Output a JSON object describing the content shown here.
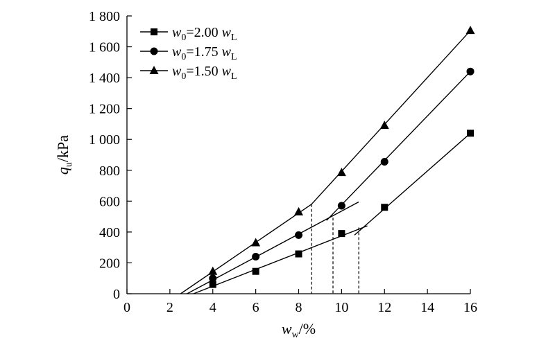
{
  "chart_data": {
    "type": "line",
    "xlim": [
      0,
      16
    ],
    "ylim": [
      0,
      1800
    ],
    "xticks": [
      0,
      2,
      4,
      6,
      8,
      10,
      12,
      14,
      16
    ],
    "yticks": [
      0,
      200,
      400,
      600,
      800,
      1000,
      1200,
      1400,
      1600,
      1800
    ],
    "xtick_labels": [
      "0",
      "2",
      "4",
      "6",
      "8",
      "10",
      "12",
      "14",
      "16"
    ],
    "ytick_labels": [
      "0",
      "200",
      "400",
      "600",
      "800",
      "1 000",
      "1 200",
      "1 400",
      "1 600",
      "1 800"
    ],
    "xlabel": {
      "var": "w",
      "sub": "w",
      "unit": "/%"
    },
    "ylabel": {
      "var": "q",
      "sub": "u",
      "unit": "/kPa"
    },
    "grid": false,
    "legend_position": "top-left",
    "series": [
      {
        "name": "w0=2.00 wL",
        "legend": {
          "var": "w",
          "sub": "0",
          "eq": "=2.00 ",
          "var2": "w",
          "sub2": "L"
        },
        "marker": "square",
        "points": [
          [
            4,
            60
          ],
          [
            6,
            145
          ],
          [
            8,
            258
          ],
          [
            10,
            390
          ],
          [
            12,
            560
          ],
          [
            16,
            1040
          ]
        ],
        "fit_lines": [
          [
            [
              3.1,
              0
            ],
            [
              11.2,
              440
            ]
          ],
          [
            [
              10.6,
              380
            ],
            [
              16,
              1040
            ]
          ]
        ],
        "breakpoint_x": 10.8
      },
      {
        "name": "w0=1.75 wL",
        "legend": {
          "var": "w",
          "sub": "0",
          "eq": "=1.75 ",
          "var2": "w",
          "sub2": "L"
        },
        "marker": "circle",
        "points": [
          [
            4,
            100
          ],
          [
            6,
            240
          ],
          [
            8,
            380
          ],
          [
            10,
            570
          ],
          [
            12,
            855
          ],
          [
            16,
            1440
          ]
        ],
        "fit_lines": [
          [
            [
              2.8,
              0
            ],
            [
              10.8,
              595
            ]
          ],
          [
            [
              9.3,
              475
            ],
            [
              16,
              1440
            ]
          ]
        ],
        "breakpoint_x": 9.6
      },
      {
        "name": "w0=1.50 wL",
        "legend": {
          "var": "w",
          "sub": "0",
          "eq": "=1.50 ",
          "var2": "w",
          "sub2": "L"
        },
        "marker": "triangle",
        "points": [
          [
            4,
            145
          ],
          [
            6,
            330
          ],
          [
            8,
            530
          ],
          [
            10,
            785
          ],
          [
            12,
            1090
          ],
          [
            16,
            1705
          ]
        ],
        "fit_lines": [
          [
            [
              2.5,
              0
            ],
            [
              8.6,
              580
            ]
          ],
          [
            [
              8.6,
              580
            ],
            [
              16,
              1705
            ]
          ]
        ],
        "breakpoint_x": 8.6
      }
    ]
  }
}
